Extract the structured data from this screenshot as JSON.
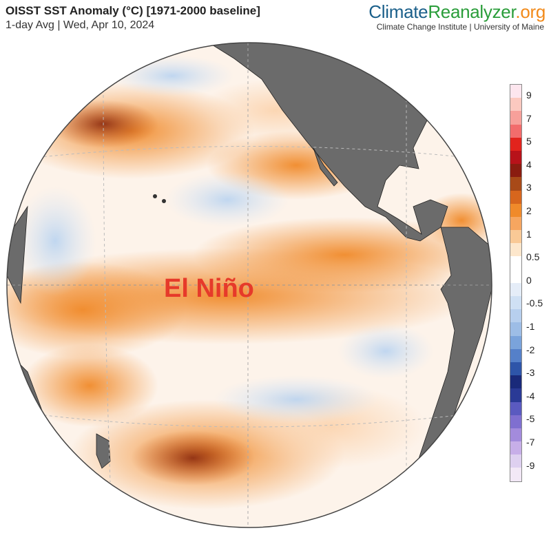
{
  "header": {
    "title": "OISST SST Anomaly (°C) [1971-2000 baseline]",
    "subtitle": "1-day Avg | Wed, Apr 10, 2024",
    "brand_part1": "Climate",
    "brand_part2": "Reanalyzer",
    "brand_part3": ".org",
    "tagline": "Climate Change Institute | University of Maine"
  },
  "annotation": "El Niño",
  "legend": {
    "ticks": [
      "9",
      "7",
      "5",
      "4",
      "3",
      "2",
      "1",
      "0.5",
      "0",
      "-0.5",
      "-1",
      "-2",
      "-3",
      "-4",
      "-5",
      "-7",
      "-9"
    ],
    "colors": [
      "#fde6ee",
      "#fcc9c0",
      "#f7a09a",
      "#f26c6c",
      "#e2231d",
      "#b7121a",
      "#8a1c10",
      "#a84a18",
      "#d7661d",
      "#f08a2a",
      "#f6a660",
      "#f9c996",
      "#fde7cc",
      "#ffffff",
      "#ffffff",
      "#e5edf8",
      "#cfe0f4",
      "#b7cfee",
      "#9dbde6",
      "#7aa3db",
      "#5580c9",
      "#2e55a9",
      "#1a2a7a",
      "#2a3a96",
      "#5a5ac0",
      "#7f6fd0",
      "#a38bdc",
      "#c7aee8",
      "#ded0f0",
      "#f2e8f6"
    ]
  },
  "map": {
    "land_color": "#6b6b6b",
    "ocean_base": "#ffffff",
    "warm": "#f08a2a",
    "warm_strong": "#8a2a10",
    "cool": "#c6dcf3"
  }
}
